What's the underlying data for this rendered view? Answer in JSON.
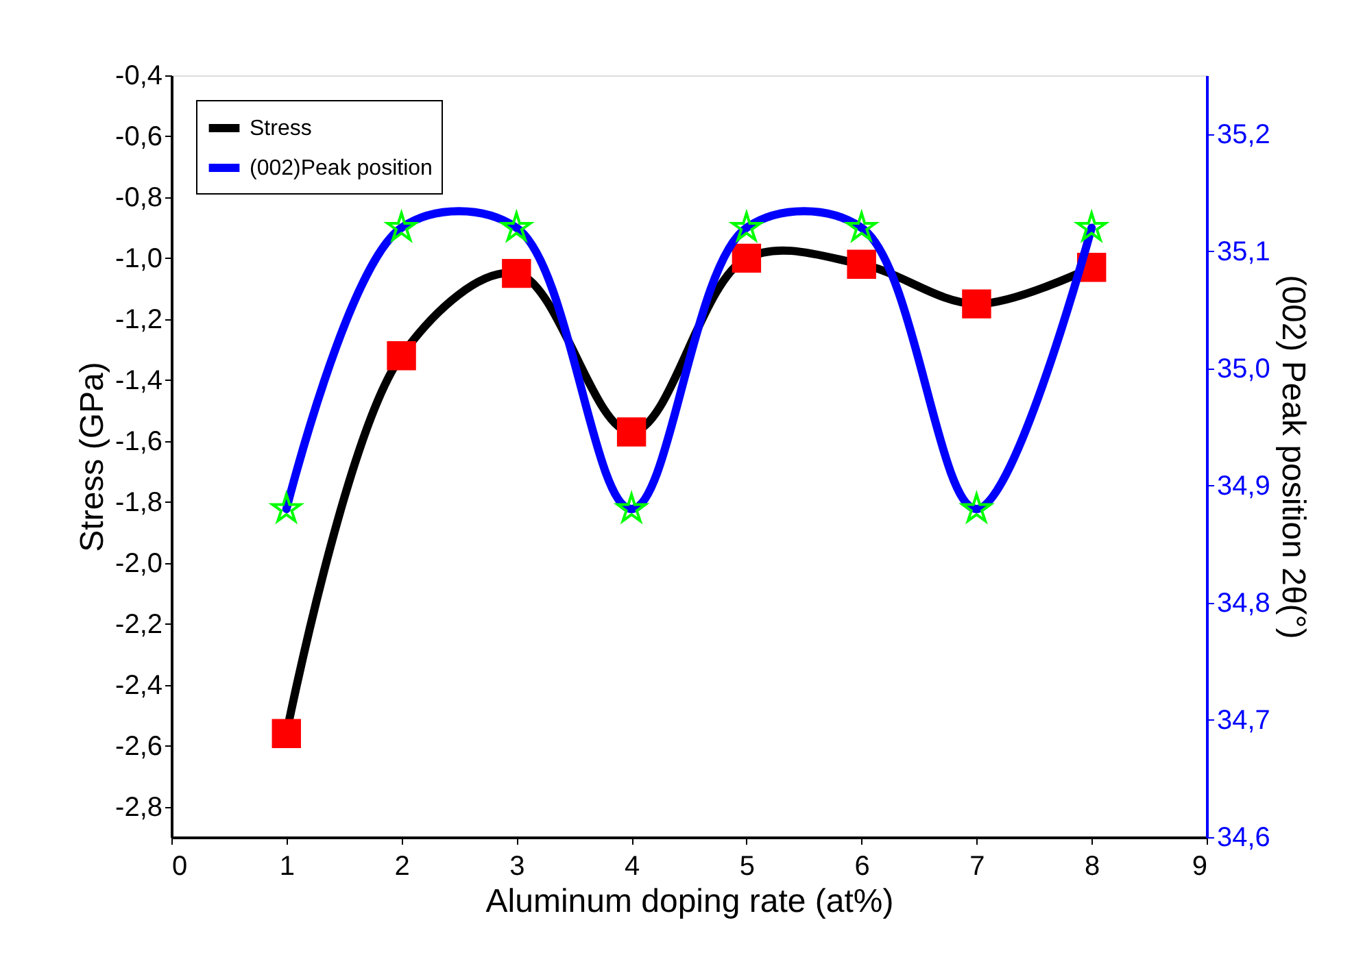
{
  "chart_data": {
    "type": "line",
    "xlabel": "Aluminum doping rate (at%)",
    "ylabel": "Stress (GPa)",
    "y2label": "(002) Peak position 2θ(°)",
    "x": [
      1,
      2,
      3,
      4,
      5,
      6,
      7,
      8
    ],
    "series": [
      {
        "name": "Stress",
        "color": "#000000",
        "marker": "square",
        "values": [
          -2.56,
          -1.32,
          -1.05,
          -1.57,
          -1.0,
          -1.02,
          -1.15,
          -1.03
        ]
      },
      {
        "name": "(002)Peak position",
        "color": "#0000ff",
        "marker": "star",
        "axis": "y2",
        "values": [
          34.88,
          35.12,
          35.12,
          34.88,
          35.12,
          35.12,
          34.88,
          35.12
        ]
      }
    ],
    "xlim": [
      0,
      9
    ],
    "xticks": [
      0,
      1,
      2,
      3,
      4,
      5,
      6,
      7,
      8,
      9
    ],
    "ylim": [
      -2.9,
      -0.4
    ],
    "yticks": [
      {
        "value": -2.8,
        "label": "-2,8"
      },
      {
        "value": -2.6,
        "label": "-2,6"
      },
      {
        "value": -2.4,
        "label": "-2,4"
      },
      {
        "value": -2.2,
        "label": "-2,2"
      },
      {
        "value": -2.0,
        "label": "-2,0"
      },
      {
        "value": -1.8,
        "label": "-1,8"
      },
      {
        "value": -1.6,
        "label": "-1,6"
      },
      {
        "value": -1.4,
        "label": "-1,4"
      },
      {
        "value": -1.2,
        "label": "-1,2"
      },
      {
        "value": -1.0,
        "label": "-1,0"
      },
      {
        "value": -0.8,
        "label": "-0,8"
      },
      {
        "value": -0.6,
        "label": "-0,6"
      },
      {
        "value": -0.4,
        "label": "-0,4"
      }
    ],
    "y2lim": [
      34.6,
      35.25
    ],
    "y2ticks": [
      {
        "value": 34.6,
        "label": "34,6"
      },
      {
        "value": 34.7,
        "label": "34,7"
      },
      {
        "value": 34.8,
        "label": "34,8"
      },
      {
        "value": 34.9,
        "label": "34,9"
      },
      {
        "value": 35.0,
        "label": "35,0"
      },
      {
        "value": 35.1,
        "label": "35,1"
      },
      {
        "value": 35.2,
        "label": "35,2"
      }
    ],
    "grid": false,
    "legend": "top left",
    "line_style": "solid"
  }
}
